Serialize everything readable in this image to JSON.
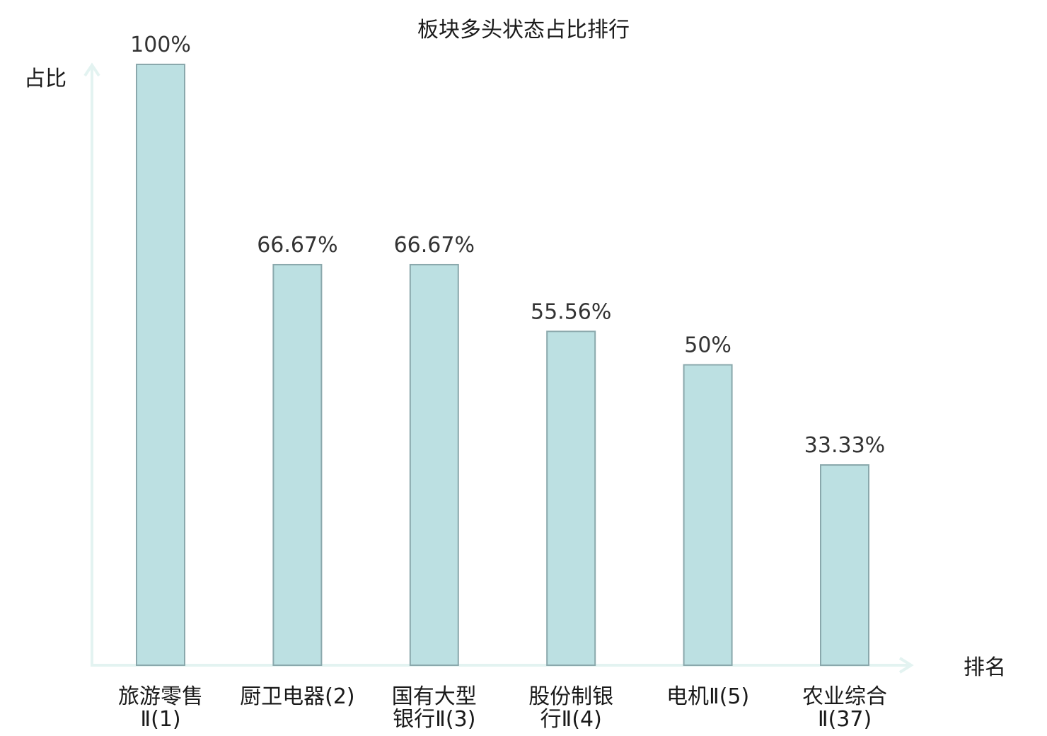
{
  "chart_data": {
    "type": "bar",
    "title": "板块多头状态占比排行",
    "ylabel": "占比",
    "xlabel": "排名",
    "ylim": [
      0,
      100
    ],
    "grid": false,
    "categories": [
      {
        "lines": [
          "旅游零售",
          "Ⅱ(1)"
        ],
        "highlight": false
      },
      {
        "lines": [
          "厨卫电器(2)"
        ],
        "highlight": false
      },
      {
        "lines": [
          "国有大型",
          "银行Ⅱ(3)"
        ],
        "highlight": false
      },
      {
        "lines": [
          "股份制银",
          "行Ⅱ(4)"
        ],
        "highlight": false
      },
      {
        "lines": [
          "电机Ⅱ(5)"
        ],
        "highlight": false
      },
      {
        "lines": [
          "农业综合",
          "Ⅱ(37)"
        ],
        "highlight": true
      }
    ],
    "values": [
      100,
      66.67,
      66.67,
      55.56,
      50,
      33.33
    ],
    "value_labels": [
      "100%",
      "66.67%",
      "66.67%",
      "55.56%",
      "50%",
      "33.33%"
    ],
    "colors": {
      "bar_fill": "#bce0e2",
      "bar_stroke": "#8aa8ac",
      "axis": "#e3f3f1",
      "highlight_label": "#e8101a",
      "text": "#1a1a1a"
    }
  }
}
